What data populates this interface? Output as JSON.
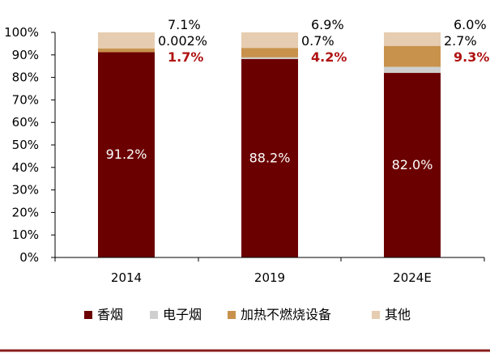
{
  "chart_data": {
    "type": "bar",
    "stacked": true,
    "categories": [
      "2014",
      "2019",
      "2024E"
    ],
    "ylim": [
      0,
      100
    ],
    "y_ticks": [
      "0%",
      "10%",
      "20%",
      "30%",
      "40%",
      "50%",
      "60%",
      "70%",
      "80%",
      "90%",
      "100%"
    ],
    "series": [
      {
        "name": "香烟",
        "color": "#6b0000",
        "values": [
          91.2,
          88.2,
          82.0
        ],
        "labels": [
          "91.2%",
          "88.2%",
          "82.0%"
        ]
      },
      {
        "name": "电子烟",
        "color": "#cfcfcf",
        "values": [
          0.002,
          0.7,
          2.7
        ],
        "labels": [
          "0.002%",
          "0.7%",
          "2.7%"
        ]
      },
      {
        "name": "加热不燃烧设备",
        "color": "#c8924c",
        "values": [
          1.7,
          4.2,
          9.3
        ],
        "labels": [
          "1.7%",
          "4.2%",
          "9.3%"
        ]
      },
      {
        "name": "其他",
        "color": "#e6ccb0",
        "values": [
          7.1,
          6.9,
          6.0
        ],
        "labels": [
          "7.1%",
          "6.9%",
          "6.0%"
        ]
      }
    ],
    "legend_position": "bottom",
    "grid": false
  },
  "colors": {
    "accent_line": "#8a1c1c",
    "highlight_label": "#b01313"
  }
}
